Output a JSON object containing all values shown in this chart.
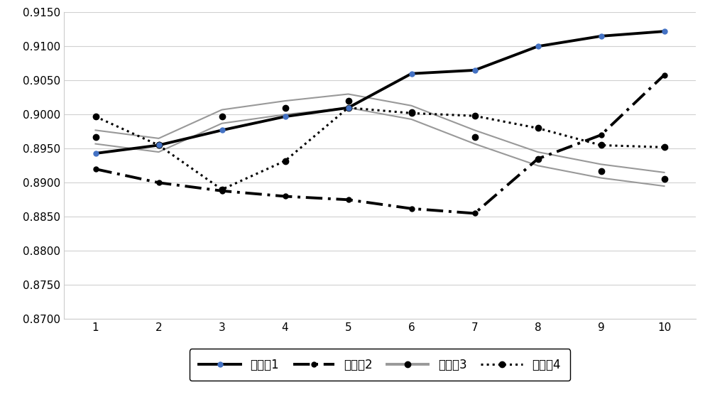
{
  "x": [
    1,
    2,
    3,
    4,
    5,
    6,
    7,
    8,
    9,
    10
  ],
  "series1": [
    0.8943,
    0.8955,
    0.8977,
    0.8997,
    0.901,
    0.906,
    0.9065,
    0.91,
    0.9115,
    0.9122
  ],
  "series2": [
    0.892,
    0.89,
    0.8888,
    0.888,
    0.8875,
    0.8862,
    0.8855,
    0.8935,
    0.897,
    0.9058
  ],
  "series3_top": [
    0.8972,
    0.896,
    0.9002,
    0.9015,
    0.9025,
    0.9008,
    0.8972,
    0.894,
    0.8922,
    0.891
  ],
  "series3_bot": [
    0.8962,
    0.895,
    0.8992,
    0.9005,
    0.9015,
    0.8998,
    0.8962,
    0.893,
    0.8912,
    0.89
  ],
  "series4": [
    0.8997,
    0.8955,
    0.889,
    0.8932,
    0.901,
    0.9002,
    0.8998,
    0.898,
    0.8955,
    0.8952
  ],
  "labels": [
    "训练集1",
    "训练集2",
    "训练集3",
    "训练集4"
  ],
  "ylim": [
    0.87,
    0.915
  ],
  "yticks": [
    0.87,
    0.875,
    0.88,
    0.885,
    0.89,
    0.895,
    0.9,
    0.905,
    0.91,
    0.915
  ],
  "xticks": [
    1,
    2,
    3,
    4,
    5,
    6,
    7,
    8,
    9,
    10
  ],
  "background_color": "#ffffff",
  "grid_color": "#d0d0d0",
  "marker_size": 5
}
